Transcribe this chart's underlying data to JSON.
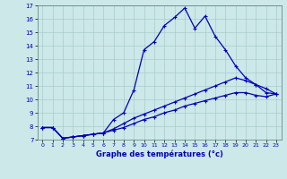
{
  "xlabel": "Graphe des températures (°c)",
  "background_color": "#cce8e8",
  "grid_color": "#aacccc",
  "line_color": "#0000bb",
  "ylim": [
    7,
    17
  ],
  "xlim": [
    -0.5,
    23.5
  ],
  "yticks": [
    7,
    8,
    9,
    10,
    11,
    12,
    13,
    14,
    15,
    16,
    17
  ],
  "xticks": [
    0,
    1,
    2,
    3,
    4,
    5,
    6,
    7,
    8,
    9,
    10,
    11,
    12,
    13,
    14,
    15,
    16,
    17,
    18,
    19,
    20,
    21,
    22,
    23
  ],
  "line1_x": [
    0,
    1,
    2,
    3,
    4,
    5,
    6,
    7,
    8,
    9,
    10,
    11,
    12,
    13,
    14,
    15,
    16,
    17,
    18,
    19,
    20,
    21,
    22,
    23
  ],
  "line1_y": [
    7.9,
    7.9,
    7.1,
    7.2,
    7.3,
    7.4,
    7.5,
    8.5,
    9.0,
    10.7,
    13.7,
    14.3,
    15.5,
    16.1,
    16.8,
    15.3,
    16.2,
    14.7,
    13.7,
    12.5,
    11.6,
    11.1,
    10.5,
    10.4
  ],
  "line2_x": [
    0,
    1,
    2,
    3,
    4,
    5,
    6,
    7,
    8,
    9,
    10,
    11,
    12,
    13,
    14,
    15,
    16,
    17,
    18,
    19,
    20,
    21,
    22,
    23
  ],
  "line2_y": [
    7.9,
    7.9,
    7.1,
    7.2,
    7.3,
    7.4,
    7.5,
    7.8,
    8.2,
    8.6,
    8.9,
    9.2,
    9.5,
    9.8,
    10.1,
    10.4,
    10.7,
    11.0,
    11.3,
    11.6,
    11.4,
    11.1,
    10.8,
    10.4
  ],
  "line3_x": [
    0,
    1,
    2,
    3,
    4,
    5,
    6,
    7,
    8,
    9,
    10,
    11,
    12,
    13,
    14,
    15,
    16,
    17,
    18,
    19,
    20,
    21,
    22,
    23
  ],
  "line3_y": [
    7.9,
    7.9,
    7.1,
    7.2,
    7.3,
    7.4,
    7.5,
    7.7,
    7.9,
    8.2,
    8.5,
    8.7,
    9.0,
    9.2,
    9.5,
    9.7,
    9.9,
    10.1,
    10.3,
    10.5,
    10.5,
    10.3,
    10.2,
    10.4
  ],
  "marker": "+",
  "markersize": 3,
  "linewidth": 0.9
}
